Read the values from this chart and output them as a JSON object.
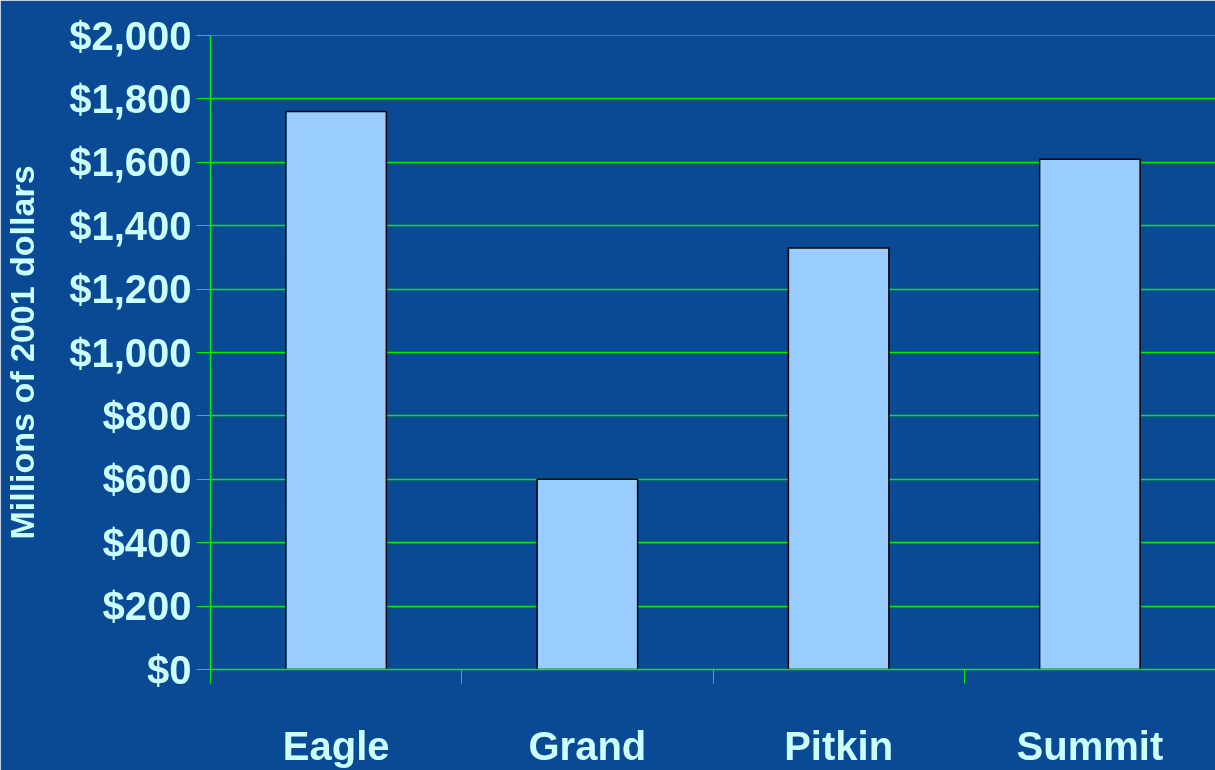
{
  "chart_data": {
    "type": "bar",
    "ylabel": "Millions of 2001 dollars",
    "categories": [
      "Eagle",
      "Grand",
      "Pitkin",
      "Summit"
    ],
    "values": [
      1760,
      600,
      1330,
      1610
    ],
    "color": "#99ccff",
    "ylim": [
      0,
      2000
    ],
    "yticks": [
      {
        "value": 0,
        "label": "$0"
      },
      {
        "value": 200,
        "label": "$200"
      },
      {
        "value": 400,
        "label": "$400"
      },
      {
        "value": 600,
        "label": "$600"
      },
      {
        "value": 800,
        "label": "$800"
      },
      {
        "value": 1000,
        "label": "$1,000"
      },
      {
        "value": 1200,
        "label": "$1,200"
      },
      {
        "value": 1400,
        "label": "$1,400"
      },
      {
        "value": 1600,
        "label": "$1,600"
      },
      {
        "value": 1800,
        "label": "$1,800"
      },
      {
        "value": 2000,
        "label": "$2,000"
      }
    ],
    "grid": "y"
  }
}
